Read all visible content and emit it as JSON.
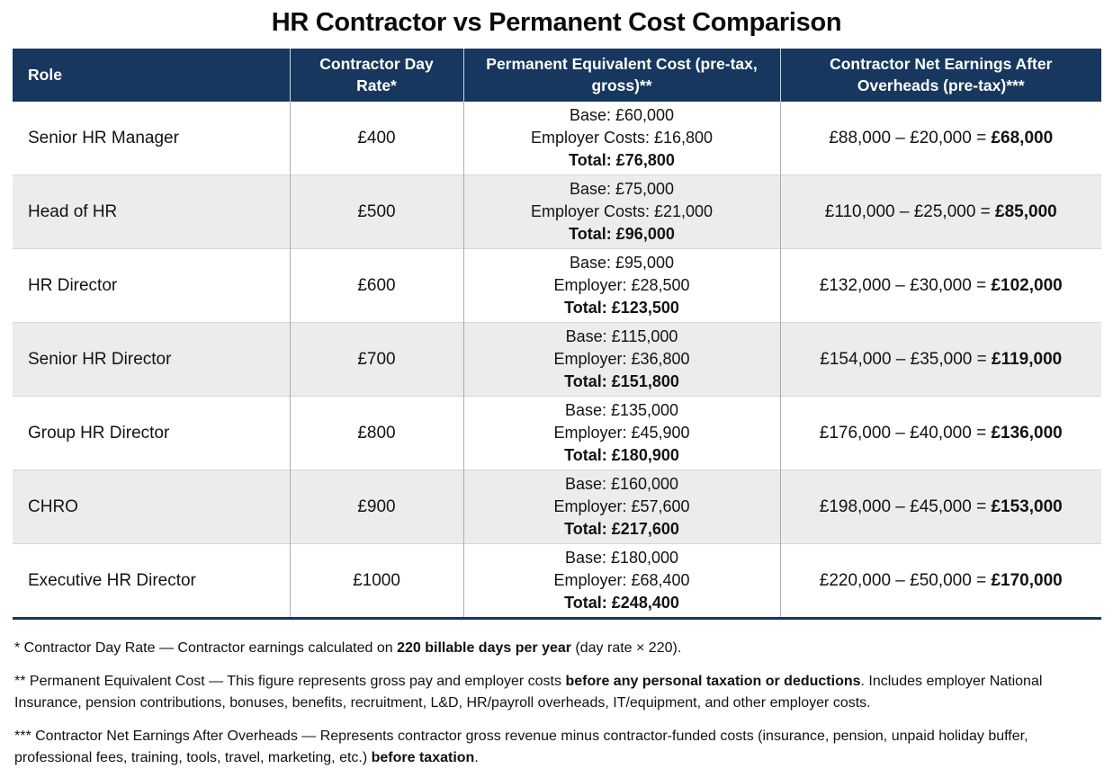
{
  "title": "HR Contractor vs Permanent Cost Comparison",
  "colors": {
    "header_bg": "#17375e",
    "header_text": "#ffffff",
    "row_alt_bg": "#ececec",
    "table_bottom_border": "#17375e"
  },
  "table": {
    "headers": [
      "Role",
      "Contractor Day Rate*",
      "Permanent Equivalent Cost (pre-tax, gross)**",
      "Contractor Net Earnings After Overheads (pre-tax)***"
    ],
    "rows": [
      {
        "role": "Senior HR Manager",
        "day_rate": "£400",
        "base": "Base: £60,000",
        "employer": "Employer Costs: £16,800",
        "total": "Total: £76,800",
        "net_calc": "£88,000 – £20,000 = ",
        "net_result": "£68,000"
      },
      {
        "role": "Head of HR",
        "day_rate": "£500",
        "base": "Base: £75,000",
        "employer": "Employer Costs: £21,000",
        "total": "Total: £96,000",
        "net_calc": "£110,000 – £25,000 = ",
        "net_result": "£85,000"
      },
      {
        "role": "HR Director",
        "day_rate": "£600",
        "base": "Base: £95,000",
        "employer": "Employer: £28,500",
        "total": "Total: £123,500",
        "net_calc": "£132,000 – £30,000 = ",
        "net_result": "£102,000"
      },
      {
        "role": "Senior HR Director",
        "day_rate": "£700",
        "base": "Base: £115,000",
        "employer": "Employer: £36,800",
        "total": "Total: £151,800",
        "net_calc": "£154,000 – £35,000 = ",
        "net_result": "£119,000"
      },
      {
        "role": "Group HR Director",
        "day_rate": "£800",
        "base": "Base: £135,000",
        "employer": "Employer: £45,900",
        "total": "Total: £180,900",
        "net_calc": "£176,000 – £40,000 = ",
        "net_result": "£136,000"
      },
      {
        "role": "CHRO",
        "day_rate": "£900",
        "base": "Base: £160,000",
        "employer": "Employer: £57,600",
        "total": "Total: £217,600",
        "net_calc": "£198,000 – £45,000 = ",
        "net_result": "£153,000"
      },
      {
        "role": "Executive HR Director",
        "day_rate": "£1000",
        "base": "Base: £180,000",
        "employer": "Employer: £68,400",
        "total": "Total: £248,400",
        "net_calc": "£220,000 – £50,000 = ",
        "net_result": "£170,000"
      }
    ]
  },
  "footnotes": [
    {
      "segments": [
        {
          "text": "* Contractor Day Rate — Contractor earnings calculated on ",
          "bold": false
        },
        {
          "text": "220 billable days per year",
          "bold": true
        },
        {
          "text": " (day rate × 220).",
          "bold": false
        }
      ]
    },
    {
      "segments": [
        {
          "text": "** Permanent Equivalent Cost — This figure represents gross pay and employer costs ",
          "bold": false
        },
        {
          "text": "before any personal taxation or deductions",
          "bold": true
        },
        {
          "text": ". Includes employer National Insurance, pension contributions, bonuses, benefits, recruitment, L&D, HR/payroll overheads, IT/equipment, and other employer costs.",
          "bold": false
        }
      ]
    },
    {
      "segments": [
        {
          "text": "*** Contractor Net Earnings After Overheads — Represents contractor gross revenue minus contractor-funded costs (insurance, pension, unpaid holiday buffer, professional fees, training, tools, travel, marketing, etc.) ",
          "bold": false
        },
        {
          "text": "before taxation",
          "bold": true
        },
        {
          "text": ".",
          "bold": false
        }
      ]
    }
  ],
  "chart_data": {
    "type": "table",
    "title": "HR Contractor vs Permanent Cost Comparison",
    "columns": [
      "Role",
      "Contractor Day Rate*",
      "Permanent Equivalent Cost (pre-tax, gross)**",
      "Contractor Net Earnings After Overheads (pre-tax)***"
    ],
    "rows": [
      [
        "Senior HR Manager",
        "£400",
        "Base: £60,000; Employer Costs: £16,800; Total: £76,800",
        "£88,000 – £20,000 = £68,000"
      ],
      [
        "Head of HR",
        "£500",
        "Base: £75,000; Employer Costs: £21,000; Total: £96,000",
        "£110,000 – £25,000 = £85,000"
      ],
      [
        "HR Director",
        "£600",
        "Base: £95,000; Employer: £28,500; Total: £123,500",
        "£132,000 – £30,000 = £102,000"
      ],
      [
        "Senior HR Director",
        "£700",
        "Base: £115,000; Employer: £36,800; Total: £151,800",
        "£154,000 – £35,000 = £119,000"
      ],
      [
        "Group HR Director",
        "£800",
        "Base: £135,000; Employer: £45,900; Total: £180,900",
        "£176,000 – £40,000 = £136,000"
      ],
      [
        "CHRO",
        "£900",
        "Base: £160,000; Employer: £57,600; Total: £217,600",
        "£198,000 – £45,000 = £153,000"
      ],
      [
        "Executive HR Director",
        "£1000",
        "Base: £180,000; Employer: £68,400; Total: £248,400",
        "£220,000 – £50,000 = £170,000"
      ]
    ],
    "day_rate_values": [
      400,
      500,
      600,
      700,
      800,
      900,
      1000
    ],
    "permanent_total_values": [
      76800,
      96000,
      123500,
      151800,
      180900,
      217600,
      248400
    ],
    "contractor_net_values": [
      68000,
      85000,
      102000,
      119000,
      136000,
      153000,
      170000
    ]
  }
}
